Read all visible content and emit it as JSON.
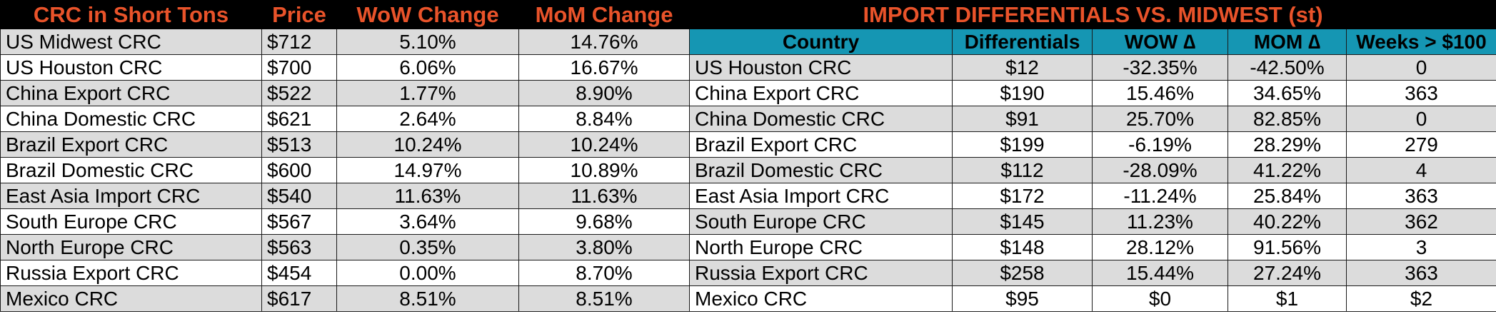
{
  "crc_table": {
    "headers": [
      "CRC in Short Tons",
      "Price",
      "WoW Change",
      "MoM Change"
    ],
    "rows": [
      {
        "name": "US Midwest CRC",
        "price": "$712",
        "wow": "5.10%",
        "mom": "14.76%"
      },
      {
        "name": "US Houston CRC",
        "price": "$700",
        "wow": "6.06%",
        "mom": "16.67%"
      },
      {
        "name": "China Export CRC",
        "price": "$522",
        "wow": "1.77%",
        "mom": "8.90%"
      },
      {
        "name": "China Domestic CRC",
        "price": "$621",
        "wow": "2.64%",
        "mom": "8.84%"
      },
      {
        "name": "Brazil Export CRC",
        "price": "$513",
        "wow": "10.24%",
        "mom": "10.24%"
      },
      {
        "name": "Brazil Domestic CRC",
        "price": "$600",
        "wow": "14.97%",
        "mom": "10.89%"
      },
      {
        "name": "East Asia Import CRC",
        "price": "$540",
        "wow": "11.63%",
        "mom": "11.63%"
      },
      {
        "name": "South Europe CRC",
        "price": "$567",
        "wow": "3.64%",
        "mom": "9.68%"
      },
      {
        "name": "North Europe CRC",
        "price": "$563",
        "wow": "0.35%",
        "mom": "3.80%"
      },
      {
        "name": "Russia Export CRC",
        "price": "$454",
        "wow": "0.00%",
        "mom": "8.70%"
      },
      {
        "name": "Mexico CRC",
        "price": "$617",
        "wow": "8.51%",
        "mom": "8.51%"
      }
    ]
  },
  "differentials_table": {
    "title": "IMPORT DIFFERENTIALS VS. MIDWEST (st)",
    "headers": [
      "Country",
      "Differentials",
      "WOW ∆",
      "MOM ∆",
      "Weeks > $100"
    ],
    "rows": [
      {
        "country": "US Houston CRC",
        "diff": "$12",
        "wow": "-32.35%",
        "mom": "-42.50%",
        "weeks": "0"
      },
      {
        "country": "China Export CRC",
        "diff": "$190",
        "wow": "15.46%",
        "mom": "34.65%",
        "weeks": "363"
      },
      {
        "country": "China Domestic CRC",
        "diff": "$91",
        "wow": "25.70%",
        "mom": "82.85%",
        "weeks": "0"
      },
      {
        "country": "Brazil Export CRC",
        "diff": "$199",
        "wow": "-6.19%",
        "mom": "28.29%",
        "weeks": "279"
      },
      {
        "country": "Brazil Domestic CRC",
        "diff": "$112",
        "wow": "-28.09%",
        "mom": "41.22%",
        "weeks": "4"
      },
      {
        "country": "East Asia Import CRC",
        "diff": "$172",
        "wow": "-11.24%",
        "mom": "25.84%",
        "weeks": "363"
      },
      {
        "country": "South Europe CRC",
        "diff": "$145",
        "wow": "11.23%",
        "mom": "40.22%",
        "weeks": "362"
      },
      {
        "country": "North Europe CRC",
        "diff": "$148",
        "wow": "28.12%",
        "mom": "91.56%",
        "weeks": "3"
      },
      {
        "country": "Russia Export CRC",
        "diff": "$258",
        "wow": "15.44%",
        "mom": "27.24%",
        "weeks": "363"
      },
      {
        "country": "Mexico CRC",
        "diff": "$95",
        "wow": "$0",
        "mom": "$1",
        "weeks": "$2"
      }
    ]
  },
  "colors": {
    "header_bg": "#000000",
    "header_text": "#e9532a",
    "subheader_bg": "#1596b3",
    "shaded_row": "#dcdcdc"
  }
}
